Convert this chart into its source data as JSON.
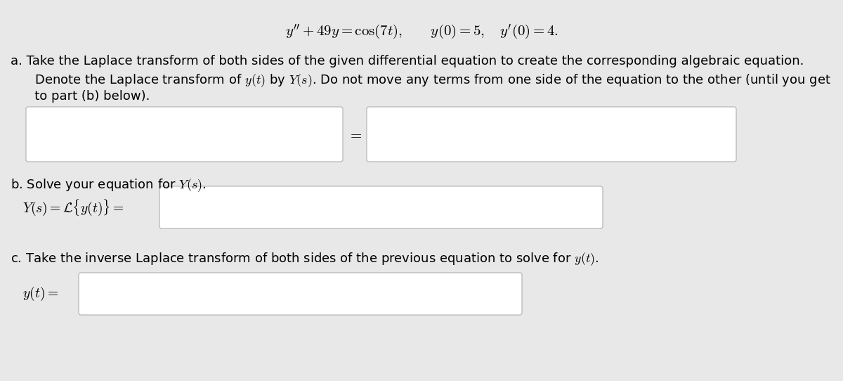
{
  "bg_color": "#e8e8e8",
  "box_color": "#ffffff",
  "box_border_color": "#b0b0b0",
  "text_color": "#000000",
  "title_eq": "$y'' + 49y = \\cos(7t), \\qquad y(0) = 5, \\quad y'(0) = 4.$",
  "part_a_line1": "a. Take the Laplace transform of both sides of the given differential equation to create the corresponding algebraic equation.",
  "part_a_line2": "   Denote the Laplace transform of $y(t)$ by $Y(s)$. Do not move any terms from one side of the equation to the other (until you get",
  "part_a_line3": "   to part (b) below).",
  "part_b_line1": "b. Solve your equation for $Y(s)$.",
  "part_b_prefix": "$Y(s) = \\mathcal{L}\\{y(t)\\} = $",
  "part_c_line1": "c. Take the inverse Laplace transform of both sides of the previous equation to solve for $y(t)$.",
  "part_c_prefix": "$y(t) =$",
  "equals_sign": "$=$",
  "font_size_title": 15,
  "font_size_body": 13,
  "font_size_math": 14
}
